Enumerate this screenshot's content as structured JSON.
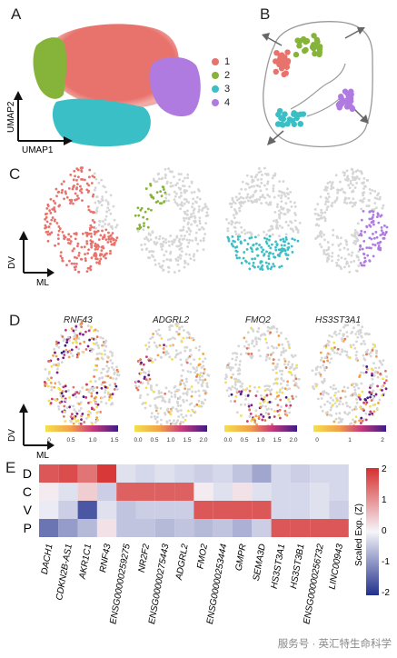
{
  "panels": {
    "A": "A",
    "B": "B",
    "C": "C",
    "D": "D",
    "E": "E"
  },
  "umap": {
    "axis_y": "UMAP2",
    "axis_x": "UMAP1"
  },
  "clusters": [
    {
      "label": "1",
      "color": "#E8736C"
    },
    {
      "label": "2",
      "color": "#86B33A"
    },
    {
      "label": "3",
      "color": "#3BBFC6"
    },
    {
      "label": "4",
      "color": "#B07BE0"
    }
  ],
  "spatial_axes": {
    "y": "DV",
    "x": "ML"
  },
  "genes_d": [
    "RNF43",
    "ADGRL2",
    "FMO2",
    "HS3ST3A1"
  ],
  "colorbars_d": [
    {
      "ticks": [
        "0",
        "0.5",
        "1.0",
        "1.5"
      ]
    },
    {
      "ticks": [
        "0.0",
        "0.5",
        "1.0",
        "1.5",
        "2.0"
      ]
    },
    {
      "ticks": [
        "0.0",
        "0.5",
        "1.0",
        "1.5",
        "2.0"
      ]
    },
    {
      "ticks": [
        "0",
        "1",
        "2"
      ]
    }
  ],
  "heatmap": {
    "rows": [
      "D",
      "C",
      "V",
      "P"
    ],
    "cols": [
      "DACH1",
      "CDKN2B-AS1",
      "AKR1C1",
      "RNF43",
      "ENSG00000259275",
      "NR2F2",
      "ENSG00000275443",
      "ADGRL2",
      "FMO2",
      "ENSG00000253444",
      "GMPR",
      "SEMA3D",
      "HS3ST3A1",
      "HS3ST3B1",
      "ENSG00000256732",
      "LINC00943"
    ],
    "values": [
      [
        1.6,
        1.7,
        1.3,
        1.9,
        -0.2,
        -0.3,
        -0.2,
        -0.3,
        -0.4,
        -0.3,
        -0.5,
        -0.8,
        -0.3,
        -0.4,
        -0.3,
        -0.3
      ],
      [
        0.1,
        -0.2,
        0.4,
        -0.4,
        1.5,
        1.5,
        1.5,
        1.5,
        0.1,
        -0.2,
        0.2,
        -0.2,
        -0.3,
        -0.3,
        -0.2,
        -0.3
      ],
      [
        -0.1,
        -0.4,
        -1.6,
        -0.2,
        -0.5,
        -0.4,
        -0.4,
        -0.4,
        1.6,
        1.6,
        1.6,
        1.6,
        -0.3,
        -0.3,
        -0.2,
        -0.4
      ],
      [
        -1.3,
        -0.9,
        -0.6,
        0.2,
        -0.5,
        -0.5,
        -0.6,
        -0.5,
        -0.6,
        -0.5,
        -0.7,
        -0.4,
        1.6,
        1.6,
        1.6,
        1.6
      ]
    ],
    "colorbar_label": "Scaled Exp. (Z)",
    "colorbar_ticks": [
      "2",
      "1",
      "0",
      "-1",
      "-2"
    ],
    "vmin": -2,
    "vmax": 2
  },
  "watermark": "服务号 · 英汇特生命科学"
}
